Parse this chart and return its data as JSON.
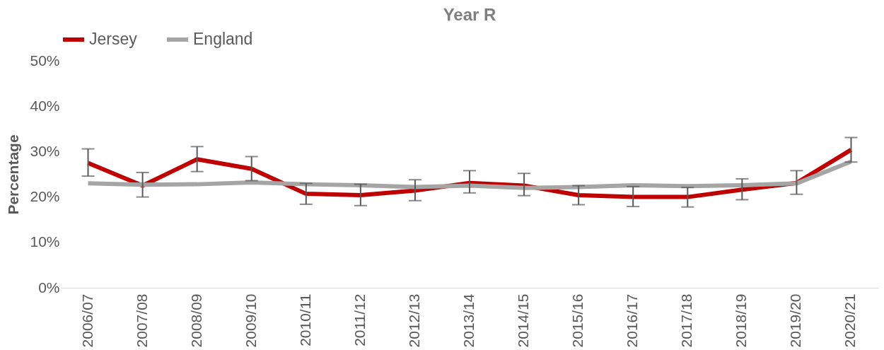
{
  "chart_data": {
    "type": "line",
    "title": "Year R",
    "ylabel": "Percentage",
    "categories": [
      "2006/07",
      "2007/08",
      "2008/09",
      "2009/10",
      "2010/11",
      "2011/12",
      "2012/13",
      "2013/14",
      "2014/15",
      "2015/16",
      "2016/17",
      "2017/18",
      "2018/19",
      "2019/20",
      "2020/21"
    ],
    "series": [
      {
        "name": "Jersey",
        "color": "#c00000",
        "values": [
          27.5,
          22.5,
          28.3,
          26.2,
          20.7,
          20.4,
          21.4,
          23.1,
          22.5,
          20.4,
          20.0,
          20.0,
          21.6,
          23.1,
          30.4
        ],
        "errors": [
          [
            24.6,
            30.6
          ],
          [
            20.0,
            25.4
          ],
          [
            25.6,
            31.1
          ],
          [
            23.6,
            28.9
          ],
          [
            18.4,
            23.0
          ],
          [
            18.1,
            22.8
          ],
          [
            19.2,
            23.8
          ],
          [
            20.9,
            25.8
          ],
          [
            20.3,
            25.2
          ],
          [
            18.3,
            22.5
          ],
          [
            17.9,
            22.3
          ],
          [
            17.8,
            22.1
          ],
          [
            19.4,
            24.0
          ],
          [
            20.6,
            25.8
          ],
          [
            27.7,
            33.1
          ]
        ]
      },
      {
        "name": "England",
        "color": "#a5a5a5",
        "values": [
          23.0,
          22.7,
          22.8,
          23.2,
          22.8,
          22.6,
          22.2,
          22.5,
          22.0,
          22.2,
          22.6,
          22.4,
          22.6,
          23.0,
          27.8
        ]
      }
    ],
    "ylim": [
      0,
      50
    ],
    "yticks": [
      {
        "value": 0,
        "label": "0%"
      },
      {
        "value": 10,
        "label": "10%"
      },
      {
        "value": 20,
        "label": "20%"
      },
      {
        "value": 30,
        "label": "30%"
      },
      {
        "value": 40,
        "label": "40%"
      },
      {
        "value": 50,
        "label": "50%"
      }
    ],
    "grid": false,
    "legend": "top",
    "marker": "none",
    "line_style": "solid"
  }
}
